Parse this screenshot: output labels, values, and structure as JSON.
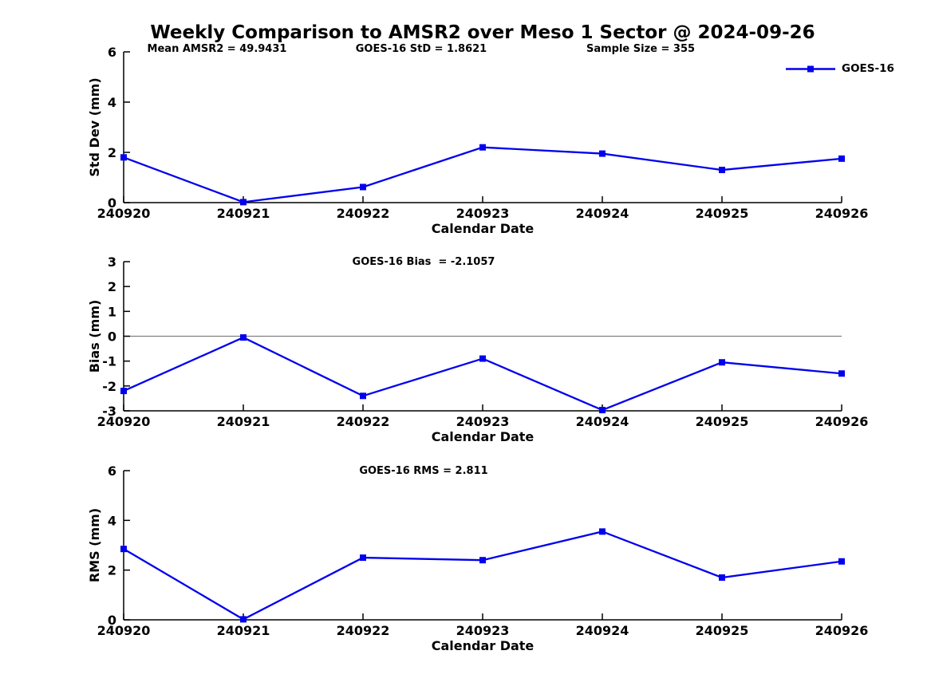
{
  "title": "Weekly Comparison to AMSR2 over Meso 1 Sector @ 2024-09-26",
  "legend": {
    "label": "GOES-16",
    "position": "top-right"
  },
  "colors": {
    "series": "#0000ee",
    "axis": "#000000",
    "zero_line": "#808080",
    "text": "#000000",
    "background": "#ffffff"
  },
  "chart_data": [
    {
      "type": "line",
      "ylabel": "Std Dev (mm)",
      "xlabel": "Calendar Date",
      "categories": [
        "240920",
        "240921",
        "240922",
        "240923",
        "240924",
        "240925",
        "240926"
      ],
      "series": [
        {
          "name": "GOES-16",
          "marker": "square",
          "values": [
            1.8,
            0.02,
            0.62,
            2.2,
            1.95,
            1.3,
            1.75
          ]
        }
      ],
      "ylim": [
        0,
        6
      ],
      "yticks": [
        0,
        2,
        4,
        6
      ],
      "grid": false,
      "zero_line": false,
      "annotations": [
        "Mean AMSR2 = 49.9431",
        "GOES-16 StD = 1.8621",
        "Sample Size = 355"
      ]
    },
    {
      "type": "line",
      "ylabel": "Bias (mm)",
      "xlabel": "Calendar Date",
      "categories": [
        "240920",
        "240921",
        "240922",
        "240923",
        "240924",
        "240925",
        "240926"
      ],
      "series": [
        {
          "name": "GOES-16",
          "marker": "square",
          "values": [
            -2.2,
            -0.05,
            -2.4,
            -0.9,
            -2.97,
            -1.05,
            -1.5
          ]
        }
      ],
      "ylim": [
        -3,
        3
      ],
      "yticks": [
        -3,
        -2,
        -1,
        0,
        1,
        2,
        3
      ],
      "grid": false,
      "zero_line": true,
      "annotations": [
        "GOES-16 Bias  = -2.1057"
      ]
    },
    {
      "type": "line",
      "ylabel": "RMS (mm)",
      "xlabel": "Calendar Date",
      "categories": [
        "240920",
        "240921",
        "240922",
        "240923",
        "240924",
        "240925",
        "240926"
      ],
      "series": [
        {
          "name": "GOES-16",
          "marker": "square",
          "values": [
            2.85,
            0.02,
            2.5,
            2.4,
            3.55,
            1.7,
            2.35
          ]
        }
      ],
      "ylim": [
        0,
        6
      ],
      "yticks": [
        0,
        2,
        4,
        6
      ],
      "grid": false,
      "zero_line": false,
      "annotations": [
        "GOES-16 RMS = 2.811"
      ]
    }
  ]
}
